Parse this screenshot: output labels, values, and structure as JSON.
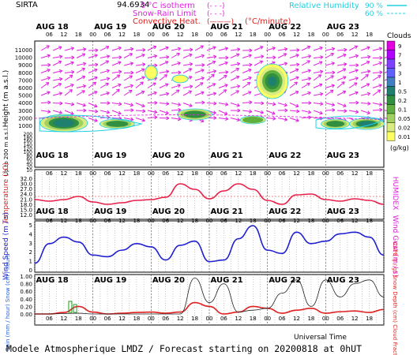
{
  "header": {
    "station": "SIRTA",
    "altitude_text": "94.6934",
    "legend_isotherm": "0 °C isotherm",
    "legend_snow_rain": "Snow-Rain Limit",
    "legend_convective": "Convective Heat.",
    "legend_convective_unit": "(°C/minute)",
    "legend_rh": "Relative Humidity",
    "rh_90": "90 %",
    "rh_60": "60 %",
    "dash_box": "(- - -)",
    "solid_box": "(———)"
  },
  "footer": {
    "title": "Modele Atmospherique LMDZ / Forecast starting on 20200818 at 0hUT",
    "xaxis_label": "Universal Time"
  },
  "days": [
    "AUG 18",
    "AUG 19",
    "AUG 20",
    "AUG 21",
    "AUG 22",
    "AUG 23"
  ],
  "hour_ticks": [
    "06",
    "12",
    "18",
    "00",
    "06",
    "12",
    "18",
    "00",
    "06",
    "12",
    "18",
    "00",
    "06",
    "12",
    "18",
    "00",
    "06",
    "12",
    "18",
    "00",
    "06",
    "12",
    "18"
  ],
  "panels": {
    "clouds": {
      "ylabel": "Height (m a.s.l.)",
      "ylabel_low": "Up to 200 m a.s.l.",
      "yticks": [
        "11000",
        "10000",
        "9000",
        "8000",
        "7000",
        "6000",
        "5000",
        "4000",
        "3000",
        "2000",
        "1000",
        "200",
        "180",
        "160",
        "140",
        "120",
        "100",
        "80",
        "60",
        "40",
        "20",
        "10"
      ],
      "colorbar_title": "Clouds",
      "colorbar_unit": "(g/kg)",
      "colorbar_labels": [
        "9",
        "7",
        "5",
        "3",
        "1",
        "0.5",
        "0.2",
        "0.1",
        "0.05",
        "0.02",
        "0.01"
      ],
      "colorbar_colors": [
        "#e000e0",
        "#b000ff",
        "#8040ff",
        "#6060ff",
        "#4080c0",
        "#208070",
        "#309040",
        "#60b040",
        "#a0d060",
        "#d8ec80",
        "#ffff60"
      ]
    },
    "temperature": {
      "ylabel": "Temperature (°C)",
      "ylabel_right": "HUMIDEX",
      "yticks": [
        "32.0",
        "30.0",
        "27.0",
        "24.0",
        "21.0",
        "18.0",
        "15.0",
        "12.0"
      ]
    },
    "wind": {
      "ylabel": "Wind Speed (m / s)",
      "ylabel_right": "Wind Gust (m / s)",
      "yticks": [
        "5",
        "4",
        "3",
        "2",
        "1",
        "0"
      ]
    },
    "rain": {
      "ylabel": "Rain (mm / hour) Snow (cm / hour)",
      "ylabel_right": "CAPE (J / g) Snow Depth (cm) Cloud Fraction",
      "yticks": [
        "1.00",
        "0.80",
        "0.60",
        "0.40",
        "0.20",
        "0.00"
      ]
    }
  },
  "chart_data": [
    {
      "type": "line",
      "name": "temperature",
      "x_hours": [
        0,
        6,
        12,
        18,
        24,
        30,
        36,
        42,
        48,
        54,
        60,
        66,
        72,
        78,
        84,
        90,
        96,
        102,
        108,
        114,
        120,
        126,
        132,
        138,
        144
      ],
      "values": [
        19.5,
        18.5,
        19.5,
        21.5,
        18.0,
        16.5,
        17.5,
        19.0,
        19.5,
        21.0,
        29.5,
        26.0,
        20.0,
        25.0,
        29.5,
        26.0,
        19.0,
        16.5,
        22.5,
        23.0,
        19.5,
        18.5,
        20.0,
        19.0,
        16.5
      ],
      "ylim": [
        10.0,
        33.0
      ],
      "color": "#e8204a"
    },
    {
      "type": "line",
      "name": "wind",
      "x_hours": [
        0,
        6,
        12,
        18,
        24,
        30,
        36,
        42,
        48,
        54,
        60,
        66,
        72,
        78,
        84,
        90,
        96,
        102,
        108,
        114,
        120,
        126,
        132,
        138,
        144
      ],
      "values": [
        0.8,
        3.2,
        4.0,
        3.4,
        1.8,
        1.6,
        2.4,
        3.2,
        2.8,
        1.2,
        3.0,
        3.5,
        1.0,
        1.2,
        3.8,
        5.4,
        2.4,
        2.0,
        4.6,
        3.2,
        3.5,
        4.4,
        4.6,
        4.0,
        1.8
      ],
      "ylim": [
        0,
        5.5
      ],
      "color": "#2020d0"
    },
    {
      "type": "line",
      "name": "cape",
      "x_hours": [
        0,
        6,
        12,
        18,
        24,
        30,
        36,
        42,
        48,
        54,
        60,
        66,
        72,
        78,
        84,
        90,
        96,
        102,
        108,
        114,
        120,
        126,
        132,
        138,
        144
      ],
      "values": [
        0.0,
        0.0,
        0.04,
        0.2,
        0.05,
        0.0,
        0.02,
        0.04,
        0.05,
        0.02,
        0.05,
        0.3,
        0.2,
        0.0,
        0.05,
        0.2,
        0.15,
        0.02,
        0.1,
        0.15,
        0.02,
        0.06,
        0.08,
        0.04,
        0.12
      ],
      "ylim": [
        0,
        1.0
      ],
      "color": "#e02020"
    },
    {
      "type": "line",
      "name": "cloud_fraction",
      "x_hours": [
        0,
        6,
        12,
        18,
        24,
        30,
        36,
        42,
        48,
        54,
        60,
        66,
        72,
        78,
        84,
        90,
        96,
        102,
        108,
        114,
        120,
        126,
        132,
        138,
        144
      ],
      "values": [
        0.0,
        0.0,
        0.01,
        0.02,
        0.0,
        0.0,
        0.0,
        0.0,
        0.0,
        0.0,
        0.0,
        0.95,
        0.3,
        0.8,
        0.05,
        0.1,
        0.15,
        0.55,
        0.9,
        0.2,
        0.9,
        0.45,
        0.8,
        0.9,
        0.45
      ],
      "ylim": [
        0,
        1.0
      ],
      "color": "#202020"
    }
  ]
}
